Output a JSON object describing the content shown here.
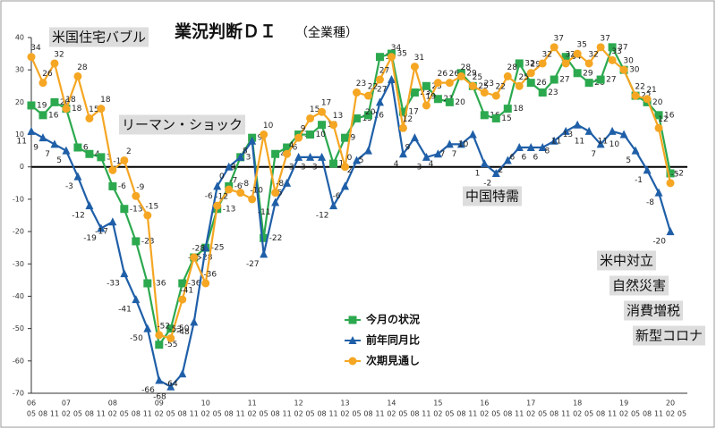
{
  "chart_data": {
    "type": "line",
    "title": "業況判断ＤＩ",
    "subtitle": "（全業種）",
    "categories": [
      "05",
      "08",
      "11",
      "02",
      "05",
      "08",
      "11",
      "02",
      "05",
      "08",
      "11",
      "02",
      "05",
      "08",
      "11",
      "02",
      "05",
      "08",
      "11",
      "02",
      "05",
      "08",
      "11",
      "02",
      "05",
      "08",
      "11",
      "02",
      "05",
      "08",
      "11",
      "02",
      "05",
      "08",
      "11",
      "02",
      "05",
      "08",
      "11",
      "02",
      "05",
      "08",
      "11",
      "02",
      "05",
      "08",
      "11",
      "02",
      "05",
      "08",
      "11",
      "02",
      "05",
      "08",
      "11",
      "02",
      "05"
    ],
    "years": [
      "06",
      null,
      null,
      "07",
      null,
      null,
      null,
      "08",
      null,
      null,
      null,
      "09",
      null,
      null,
      null,
      "10",
      null,
      null,
      null,
      "11",
      null,
      null,
      null,
      "12",
      null,
      null,
      null,
      "13",
      null,
      null,
      null,
      "14",
      null,
      null,
      null,
      "15",
      null,
      null,
      null,
      "16",
      null,
      null,
      null,
      "17",
      null,
      null,
      null,
      "18",
      null,
      null,
      null,
      "19",
      null,
      null,
      null,
      "20",
      null
    ],
    "series": [
      {
        "name": "今月の状況",
        "color": "#2ca94f",
        "marker": "square",
        "values": [
          19,
          16,
          20,
          18,
          6,
          4,
          3,
          -6,
          -13,
          -23,
          -36,
          -55,
          -50,
          -36,
          -28,
          -25,
          -13,
          -6,
          3,
          9,
          -22,
          4,
          6,
          10,
          10,
          13,
          1,
          9,
          15,
          16,
          34,
          35,
          17,
          23,
          25,
          21,
          20,
          29,
          25,
          16,
          15,
          18,
          32,
          26,
          23,
          27,
          34,
          29,
          26,
          27,
          37,
          30,
          22,
          20,
          16,
          -2,
          null
        ]
      },
      {
        "name": "前年同月比",
        "color": "#1f5fa8",
        "marker": "triangle",
        "values": [
          11,
          9,
          7,
          5,
          -3,
          -12,
          -19,
          -17,
          -33,
          -41,
          -50,
          -66,
          -68,
          -64,
          -48,
          -25,
          -6,
          0,
          3,
          8,
          -27,
          -11,
          -5,
          3,
          3,
          3,
          -12,
          -6,
          2,
          5,
          20,
          27,
          4,
          9,
          3,
          4,
          7,
          7,
          10,
          1,
          -2,
          2,
          6,
          6,
          6,
          8,
          11,
          13,
          11,
          7,
          11,
          10,
          5,
          -1,
          -8,
          -20,
          null
        ]
      },
      {
        "name": "次期見通し",
        "color": "#f5a623",
        "marker": "circle",
        "values": [
          34,
          26,
          32,
          18,
          28,
          15,
          18,
          -1,
          2,
          -9,
          -15,
          -52,
          -53,
          -41,
          -28,
          -36,
          -12,
          -7,
          -8,
          -10,
          10,
          -8,
          4,
          9,
          15,
          17,
          13,
          0,
          23,
          22,
          27,
          34,
          12,
          31,
          19,
          26,
          26,
          28,
          25,
          23,
          22,
          28,
          25,
          29,
          32,
          37,
          32,
          35,
          32,
          37,
          33,
          30,
          22,
          21,
          12,
          -5,
          null
        ]
      }
    ],
    "ylim": [
      -70,
      40
    ],
    "yticks": [
      -70,
      -60,
      -50,
      -40,
      -30,
      -20,
      -10,
      0,
      10,
      20,
      30,
      40
    ],
    "annotations": [
      "米国住宅バブル",
      "リーマン・ショック",
      "中国特需",
      "米中対立",
      "自然災害",
      "消費増税",
      "新型コロナ"
    ],
    "legend": "inside-bottom-center"
  }
}
